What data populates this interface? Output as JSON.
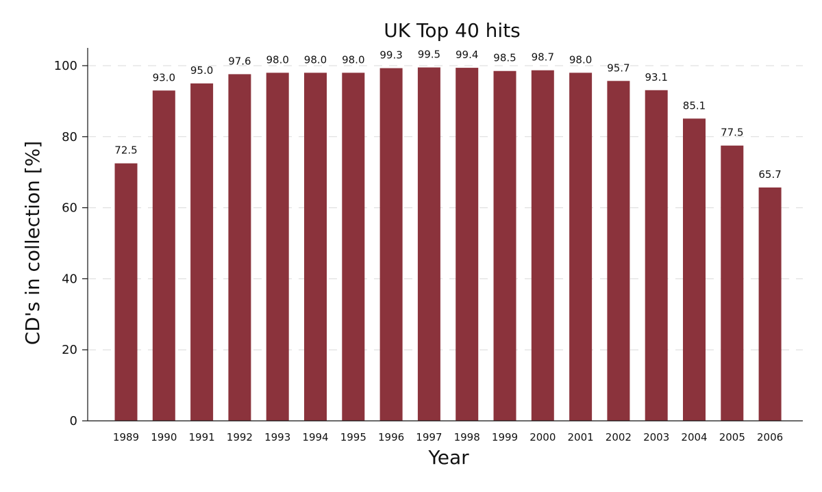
{
  "chart_data": {
    "type": "bar",
    "title": "UK Top 40 hits",
    "xlabel": "Year",
    "ylabel": "CD's in collection [%]",
    "categories": [
      "1989",
      "1990",
      "1991",
      "1992",
      "1993",
      "1994",
      "1995",
      "1996",
      "1997",
      "1998",
      "1999",
      "2000",
      "2001",
      "2002",
      "2003",
      "2004",
      "2005",
      "2006"
    ],
    "values": [
      72.5,
      93.0,
      95.0,
      97.6,
      98.0,
      98.0,
      98.0,
      99.3,
      99.5,
      99.4,
      98.5,
      98.7,
      98.0,
      95.7,
      93.1,
      85.1,
      77.5,
      65.7
    ],
    "value_labels": [
      "72.5",
      "93.0",
      "95.0",
      "97.6",
      "98.0",
      "98.0",
      "98.0",
      "99.3",
      "99.5",
      "99.4",
      "98.5",
      "98.7",
      "98.0",
      "95.7",
      "93.1",
      "85.1",
      "77.5",
      "65.7"
    ],
    "ylim": [
      0,
      105
    ],
    "yticks": [
      0,
      20,
      40,
      60,
      80,
      100
    ],
    "ytick_labels": [
      "0",
      "20",
      "40",
      "60",
      "80",
      "100"
    ],
    "grid": true,
    "legend": false,
    "bar_color": "#8b333c"
  }
}
